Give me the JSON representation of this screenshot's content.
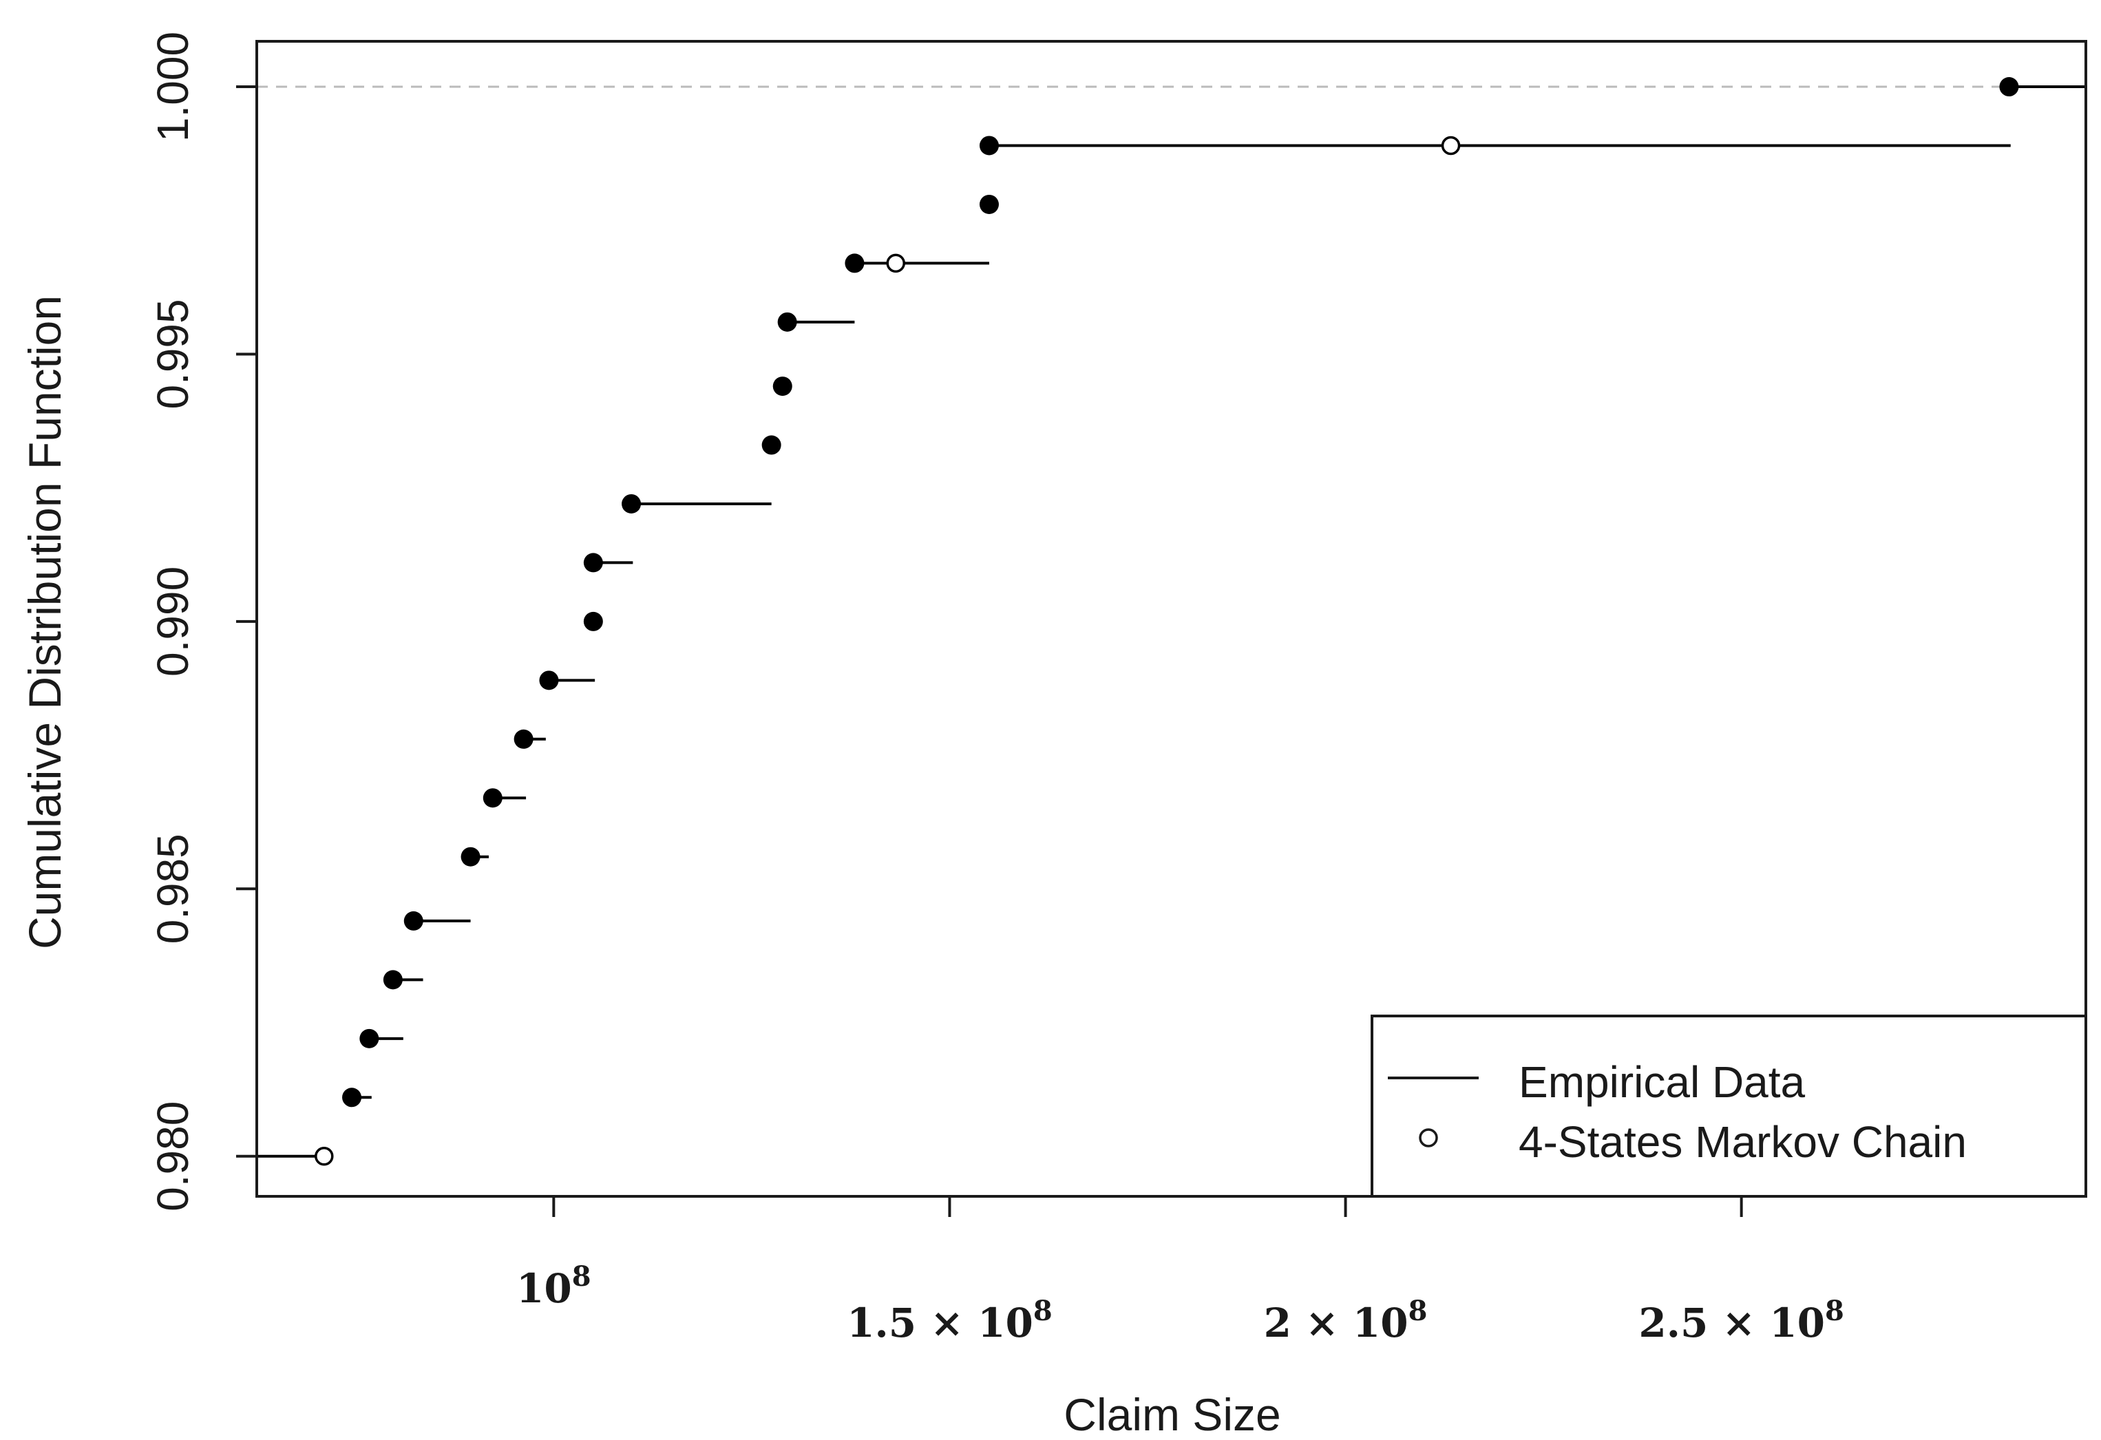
{
  "chart_data": {
    "type": "scatter",
    "title": "",
    "xlabel": "Claim Size",
    "ylabel": "Cumulative Distribution Function",
    "xlim": [
      62500000,
      293500000
    ],
    "ylim": [
      0.97925,
      1.00085
    ],
    "y_ticks": [
      {
        "value": 0.98,
        "label": "0.980"
      },
      {
        "value": 0.985,
        "label": "0.985"
      },
      {
        "value": 0.99,
        "label": "0.990"
      },
      {
        "value": 0.995,
        "label": "0.995"
      },
      {
        "value": 1.0,
        "label": "1.000"
      }
    ],
    "x_ticks": [
      {
        "value": 100000000,
        "label": "10",
        "exp": "8"
      },
      {
        "value": 150000000,
        "label": "1.5 × 10",
        "exp": "8"
      },
      {
        "value": 200000000,
        "label": "2 × 10",
        "exp": "8"
      },
      {
        "value": 250000000,
        "label": "2.5 × 10",
        "exp": "8"
      }
    ],
    "x_tick_marks": [
      100000000,
      150000000,
      200000000,
      250000000
    ],
    "reference_line": {
      "y": 1.0,
      "style": "dashed",
      "color": "#bbbbbb"
    },
    "legend": {
      "position": "bottom-right",
      "entries": [
        {
          "label": "Empirical Data",
          "symbol": "line"
        },
        {
          "label": "4-States Markov Chain",
          "symbol": "open-circle"
        }
      ]
    },
    "series": [
      {
        "name": "Empirical Data",
        "kind": "step",
        "color": "#000000",
        "steps": [
          {
            "x0": 62500000,
            "x1": 71000000,
            "y": 0.98
          },
          {
            "x0": 74500000,
            "x1": 77000000,
            "y": 0.9811
          },
          {
            "x0": 76700000,
            "x1": 81000000,
            "y": 0.9822
          },
          {
            "x0": 79700000,
            "x1": 83500000,
            "y": 0.9833
          },
          {
            "x0": 82300000,
            "x1": 89500000,
            "y": 0.9844
          },
          {
            "x0": 89500000,
            "x1": 91800000,
            "y": 0.9856
          },
          {
            "x0": 92300000,
            "x1": 96500000,
            "y": 0.9867
          },
          {
            "x0": 96200000,
            "x1": 99000000,
            "y": 0.9878
          },
          {
            "x0": 99400000,
            "x1": 105200000,
            "y": 0.9889
          },
          {
            "x0": 105000000,
            "x1": 110000000,
            "y": 0.9911
          },
          {
            "x0": 109800000,
            "x1": 127500000,
            "y": 0.9922
          },
          {
            "x0": 129500000,
            "x1": 138000000,
            "y": 0.9956
          },
          {
            "x0": 138000000,
            "x1": 155000000,
            "y": 0.9967
          },
          {
            "x0": 155000000,
            "x1": 284000000,
            "y": 0.9989
          },
          {
            "x0": 283800000,
            "x1": 293500000,
            "y": 1.0
          }
        ],
        "points": [
          {
            "x": 74500000,
            "y": 0.9811
          },
          {
            "x": 76700000,
            "y": 0.9822
          },
          {
            "x": 79700000,
            "y": 0.9833
          },
          {
            "x": 82300000,
            "y": 0.9844
          },
          {
            "x": 89500000,
            "y": 0.9856
          },
          {
            "x": 92300000,
            "y": 0.9867
          },
          {
            "x": 96200000,
            "y": 0.9878
          },
          {
            "x": 99400000,
            "y": 0.9889
          },
          {
            "x": 105000000,
            "y": 0.99
          },
          {
            "x": 105000000,
            "y": 0.9911
          },
          {
            "x": 109800000,
            "y": 0.9922
          },
          {
            "x": 127500000,
            "y": 0.9933
          },
          {
            "x": 128900000,
            "y": 0.9944
          },
          {
            "x": 129500000,
            "y": 0.9956
          },
          {
            "x": 138000000,
            "y": 0.9967
          },
          {
            "x": 155000000,
            "y": 0.9978
          },
          {
            "x": 155000000,
            "y": 0.9989
          },
          {
            "x": 283800000,
            "y": 1.0
          }
        ]
      },
      {
        "name": "4-States Markov Chain",
        "kind": "open-circle",
        "color": "#000000",
        "points": [
          {
            "x": 71000000,
            "y": 0.98
          },
          {
            "x": 143200000,
            "y": 0.9967
          },
          {
            "x": 213300000,
            "y": 0.9989
          }
        ]
      }
    ]
  }
}
